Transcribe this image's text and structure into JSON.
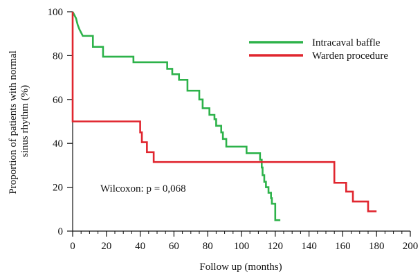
{
  "chart_data": {
    "type": "line",
    "title": "",
    "xlabel": "Follow up (months)",
    "ylabel_lines": [
      "Proportion of patients with  normal",
      "sinus rhythm (%)"
    ],
    "xlim": [
      0,
      200
    ],
    "ylim": [
      0,
      100
    ],
    "xticks": [
      0,
      20,
      40,
      60,
      80,
      100,
      120,
      140,
      160,
      180,
      200
    ],
    "yticks": [
      0,
      20,
      40,
      60,
      80,
      100
    ],
    "x_minor_step": 5,
    "grid": false,
    "legend_position": "top-right",
    "annotation": "Wilcoxon: p = 0,068",
    "series": [
      {
        "name": "Intracaval baffle",
        "color": "#2db24a",
        "step": true,
        "points": [
          [
            0,
            100
          ],
          [
            2,
            97
          ],
          [
            3,
            94
          ],
          [
            4,
            92
          ],
          [
            6,
            89
          ],
          [
            12,
            89
          ],
          [
            12,
            84
          ],
          [
            18,
            84
          ],
          [
            18,
            79.5
          ],
          [
            36,
            79.5
          ],
          [
            36,
            77
          ],
          [
            56,
            77
          ],
          [
            56,
            74
          ],
          [
            59,
            74
          ],
          [
            59,
            71.5
          ],
          [
            63,
            71.5
          ],
          [
            63,
            69
          ],
          [
            68,
            69
          ],
          [
            68,
            64
          ],
          [
            75,
            64
          ],
          [
            75,
            60
          ],
          [
            77,
            60
          ],
          [
            77,
            56
          ],
          [
            81,
            56
          ],
          [
            81,
            53
          ],
          [
            84,
            53
          ],
          [
            84,
            51
          ],
          [
            85,
            51
          ],
          [
            85,
            48
          ],
          [
            88,
            48
          ],
          [
            88,
            45
          ],
          [
            89,
            45
          ],
          [
            89,
            42
          ],
          [
            91,
            42
          ],
          [
            91,
            38.5
          ],
          [
            103,
            38.5
          ],
          [
            103,
            35.5
          ],
          [
            111,
            35.5
          ],
          [
            111,
            32.5
          ],
          [
            112,
            32.5
          ],
          [
            112,
            29
          ],
          [
            112.5,
            29
          ],
          [
            112.5,
            25.5
          ],
          [
            113.5,
            25.5
          ],
          [
            113.5,
            22.5
          ],
          [
            114.5,
            22.5
          ],
          [
            114.5,
            20
          ],
          [
            116,
            20
          ],
          [
            116,
            17.5
          ],
          [
            117.5,
            17.5
          ],
          [
            117.5,
            15
          ],
          [
            118,
            15
          ],
          [
            118,
            12.5
          ],
          [
            120,
            12.5
          ],
          [
            120,
            5
          ],
          [
            123,
            5
          ]
        ]
      },
      {
        "name": "Warden procedure",
        "color": "#e0262f",
        "step": true,
        "points": [
          [
            0,
            100
          ],
          [
            0,
            50
          ],
          [
            40,
            50
          ],
          [
            40,
            45
          ],
          [
            41,
            45
          ],
          [
            41,
            40.5
          ],
          [
            44,
            40.5
          ],
          [
            44,
            36
          ],
          [
            48,
            36
          ],
          [
            48,
            31.5
          ],
          [
            155,
            31.5
          ],
          [
            155,
            22
          ],
          [
            162,
            22
          ],
          [
            162,
            18
          ],
          [
            166,
            18
          ],
          [
            166,
            13.5
          ],
          [
            175,
            13.5
          ],
          [
            175,
            9
          ],
          [
            180,
            9
          ]
        ]
      }
    ]
  }
}
